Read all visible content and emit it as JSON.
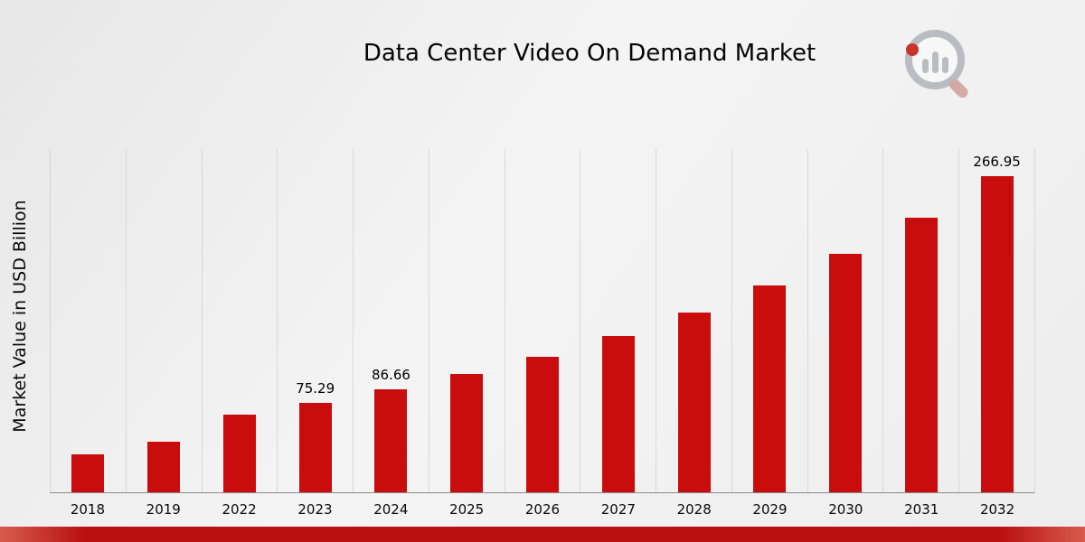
{
  "page": {
    "title": "Data Center Video On Demand Market"
  },
  "chart_data": {
    "type": "bar",
    "title": "Data Center Video On Demand Market",
    "xlabel": "",
    "ylabel": "Market Value in USD Billion",
    "ylim": [
      0,
      290
    ],
    "grid": "vertical-column-separators",
    "legend": "none",
    "bar_color": "#c90d0d",
    "categories": [
      "2018",
      "2019",
      "2022",
      "2023",
      "2024",
      "2025",
      "2026",
      "2027",
      "2028",
      "2029",
      "2030",
      "2031",
      "2032"
    ],
    "values": [
      32.37,
      42.97,
      65.41,
      75.29,
      86.66,
      99.75,
      114.82,
      132.16,
      152.13,
      175.11,
      201.57,
      232.03,
      266.95
    ],
    "bar_labels": [
      "",
      "",
      "",
      "75.29",
      "86.66",
      "",
      "",
      "",
      "",
      "",
      "",
      "",
      "266.95"
    ]
  },
  "icons": {
    "logo": "magnifier-bar-chart-icon"
  },
  "colors": {
    "accent_red": "#c90d0d",
    "footer_red": "#b80f0f",
    "footer_edge": "#d75b4e",
    "gridline": "#d8d8d8",
    "axis": "#8a8a8a"
  }
}
